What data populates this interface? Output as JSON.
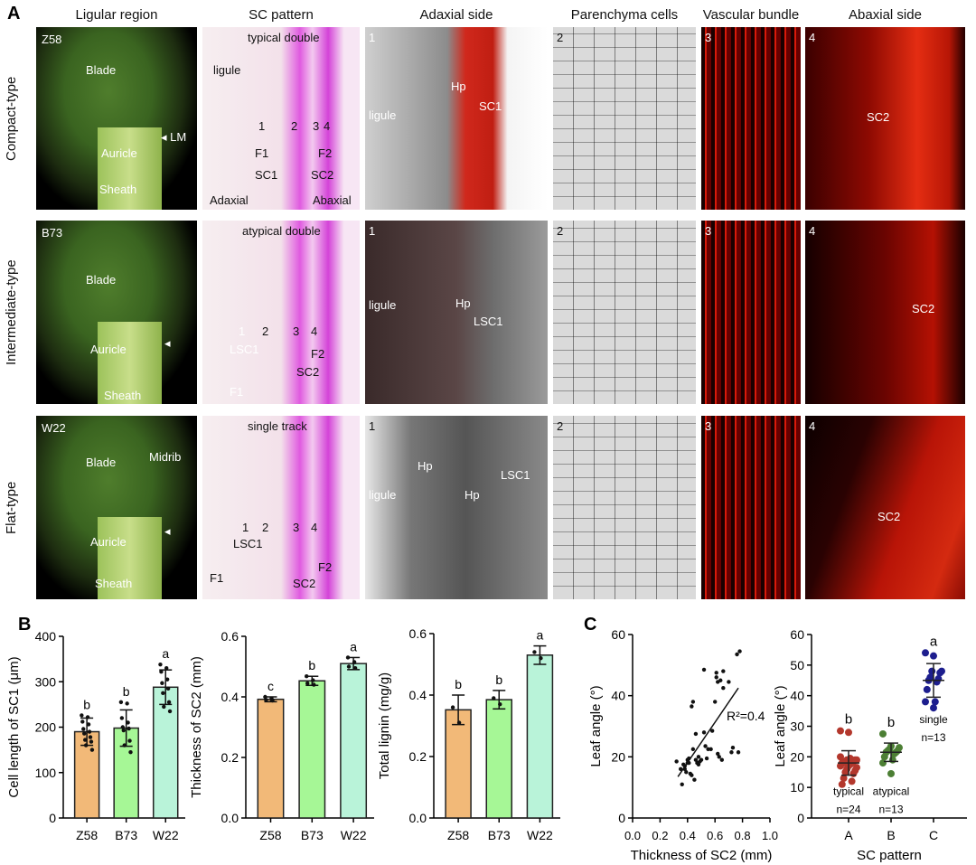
{
  "panel_a": {
    "label": "A",
    "columns": [
      "Ligular region",
      "SC pattern",
      "Adaxial side",
      "Parenchyma cells",
      "Vascular bundle",
      "Abaxial side"
    ],
    "rows": [
      {
        "type": "Compact-type",
        "cells": [
          [
            "Z58",
            "Blade",
            "Auricle",
            "Sheath",
            "◂ LM"
          ],
          [
            "typical double",
            "ligule",
            "1",
            "2",
            "3",
            "4",
            "F1",
            "F2",
            "SC1",
            "SC2",
            "Adaxial",
            "Abaxial"
          ],
          [
            "1",
            "Hp",
            "ligule",
            "SC1"
          ],
          [
            "2"
          ],
          [
            "3"
          ],
          [
            "4",
            "SC2"
          ]
        ]
      },
      {
        "type": "Intermediate-type",
        "cells": [
          [
            "B73",
            "Blade",
            "Auricle",
            "Sheath",
            "◂"
          ],
          [
            "atypical double",
            "1",
            "2",
            "3",
            "4",
            "LSC1",
            "F1",
            "F2",
            "SC2"
          ],
          [
            "1",
            "Hp",
            "ligule",
            "LSC1"
          ],
          [
            "2"
          ],
          [
            "3"
          ],
          [
            "4",
            "SC2"
          ]
        ]
      },
      {
        "type": "Flat-type",
        "cells": [
          [
            "W22",
            "Blade",
            "Midrib",
            "Auricle",
            "Sheath",
            "◂"
          ],
          [
            "single track",
            "1",
            "2",
            "3",
            "4",
            "LSC1",
            "F1",
            "F2",
            "SC2"
          ],
          [
            "1",
            "Hp",
            "Hp",
            "ligule",
            "LSC1"
          ],
          [
            "2"
          ],
          [
            "3"
          ],
          [
            "4",
            "SC2"
          ]
        ]
      }
    ]
  },
  "panel_b_label": "B",
  "panel_c_label": "C",
  "chart_data": [
    {
      "type": "bar",
      "ylabel": "Cell length of SC1 (μm)",
      "categories": [
        "Z58",
        "B73",
        "W22"
      ],
      "values": [
        190,
        198,
        288
      ],
      "errors": [
        30,
        40,
        38
      ],
      "letters": [
        "b",
        "b",
        "a"
      ],
      "ylim": [
        0,
        400
      ],
      "yticks": [
        0,
        100,
        200,
        300,
        400
      ],
      "colors": [
        "#f2b978",
        "#a6f796",
        "#b9f3d9"
      ],
      "points": [
        [
          226,
          222,
          212,
          206,
          196,
          190,
          186,
          178,
          172,
          168,
          160,
          150
        ],
        [
          255,
          252,
          220,
          210,
          200,
          197,
          193,
          170,
          160,
          145
        ],
        [
          338,
          330,
          322,
          305,
          297,
          285,
          275,
          255,
          245,
          235
        ]
      ]
    },
    {
      "type": "bar",
      "ylabel": "Thickness of SC2 (mm)",
      "categories": [
        "Z58",
        "B73",
        "W22"
      ],
      "values": [
        0.392,
        0.453,
        0.51
      ],
      "errors": [
        0.008,
        0.015,
        0.02
      ],
      "letters": [
        "c",
        "b",
        "a"
      ],
      "ylim": [
        0,
        0.6
      ],
      "yticks": [
        "0.0",
        "0.2",
        "0.4",
        "0.6"
      ],
      "colors": [
        "#f2b978",
        "#a6f796",
        "#b9f3d9"
      ],
      "points": [
        [
          0.4,
          0.395,
          0.39,
          0.388
        ],
        [
          0.468,
          0.455,
          0.445,
          0.44
        ],
        [
          0.53,
          0.515,
          0.5,
          0.495
        ]
      ]
    },
    {
      "type": "bar",
      "ylabel": "Total lignin (mg/g)",
      "categories": [
        "Z58",
        "B73",
        "W22"
      ],
      "values": [
        0.352,
        0.385,
        0.53
      ],
      "errors": [
        0.048,
        0.03,
        0.03
      ],
      "letters": [
        "b",
        "b",
        "a"
      ],
      "ylim": [
        0,
        0.6
      ],
      "yticks": [
        "0.0",
        "0.2",
        "0.4",
        "0.6"
      ],
      "colors": [
        "#f2b978",
        "#a6f796",
        "#b9f3d9"
      ],
      "points": [
        [
          0.36,
          0.31
        ],
        [
          0.39,
          0.37
        ],
        [
          0.54,
          0.52
        ]
      ]
    },
    {
      "type": "scatter",
      "xlabel": "Thickness of SC2 (mm)",
      "ylabel": "Leaf angle (°)",
      "xlim": [
        0,
        1
      ],
      "ylim": [
        0,
        60
      ],
      "xticks": [
        "0.0",
        "0.2",
        "0.4",
        "0.6",
        "0.8",
        "1.0"
      ],
      "yticks": [
        "0",
        "20",
        "40",
        "60"
      ],
      "annotation": "R²=0.4",
      "fit": [
        [
          0.33,
          13.5
        ],
        [
          0.77,
          42.5
        ]
      ],
      "points": [
        [
          0.32,
          18.5
        ],
        [
          0.36,
          11
        ],
        [
          0.35,
          16
        ],
        [
          0.37,
          17.5
        ],
        [
          0.38,
          16
        ],
        [
          0.39,
          15
        ],
        [
          0.4,
          19
        ],
        [
          0.41,
          18
        ],
        [
          0.42,
          14.5
        ],
        [
          0.43,
          14
        ],
        [
          0.44,
          22.5
        ],
        [
          0.45,
          12.5
        ],
        [
          0.43,
          36.5
        ],
        [
          0.44,
          38
        ],
        [
          0.46,
          27.5
        ],
        [
          0.46,
          19
        ],
        [
          0.47,
          18
        ],
        [
          0.48,
          20
        ],
        [
          0.48,
          17.5
        ],
        [
          0.49,
          18.5
        ],
        [
          0.5,
          19
        ],
        [
          0.52,
          48.5
        ],
        [
          0.52,
          28
        ],
        [
          0.53,
          23.5
        ],
        [
          0.54,
          19.5
        ],
        [
          0.55,
          22.5
        ],
        [
          0.57,
          22.5
        ],
        [
          0.58,
          28.5
        ],
        [
          0.6,
          38
        ],
        [
          0.61,
          47.5
        ],
        [
          0.61,
          46
        ],
        [
          0.62,
          44.5
        ],
        [
          0.62,
          21
        ],
        [
          0.63,
          20
        ],
        [
          0.64,
          45
        ],
        [
          0.65,
          19
        ],
        [
          0.66,
          48
        ],
        [
          0.66,
          42.5
        ],
        [
          0.7,
          44.5
        ],
        [
          0.72,
          21.5
        ],
        [
          0.73,
          23
        ],
        [
          0.76,
          53.5
        ],
        [
          0.78,
          54.5
        ],
        [
          0.77,
          21.5
        ],
        [
          0.4,
          18
        ],
        [
          0.38,
          17
        ],
        [
          0.41,
          19.5
        ]
      ]
    },
    {
      "type": "scatter",
      "xlabel": "SC pattern",
      "ylabel": "Leaf angle (°)",
      "ylim": [
        0,
        60
      ],
      "yticks": [
        "0",
        "10",
        "20",
        "30",
        "40",
        "50",
        "60"
      ],
      "categories": [
        "A",
        "B",
        "C"
      ],
      "groups": [
        {
          "name": "typical",
          "n": "n=24",
          "letter": "b",
          "mean": 18,
          "sd": 4,
          "color": "#b3372c",
          "values": [
            28.5,
            28,
            19,
            19,
            19,
            18.5,
            18.5,
            18,
            18,
            18,
            17.5,
            17,
            17,
            16.5,
            16,
            15.5,
            15,
            14.5,
            13,
            12,
            11,
            19.5,
            20,
            18
          ]
        },
        {
          "name": "atypical",
          "n": "n=13",
          "letter": "b",
          "mean": 21.5,
          "sd": 3,
          "color": "#4c7f34",
          "values": [
            27.5,
            23.5,
            23,
            22.5,
            22,
            22,
            21.5,
            21.5,
            21,
            20,
            19,
            18,
            14.5
          ]
        },
        {
          "name": "single",
          "n": "n=13",
          "letter": "a",
          "mean": 45,
          "sd": 5.5,
          "color": "#1d1e8e",
          "values": [
            54,
            53,
            48,
            48,
            47.5,
            46,
            45.5,
            45,
            44.5,
            42,
            38,
            38,
            36
          ]
        }
      ]
    }
  ]
}
